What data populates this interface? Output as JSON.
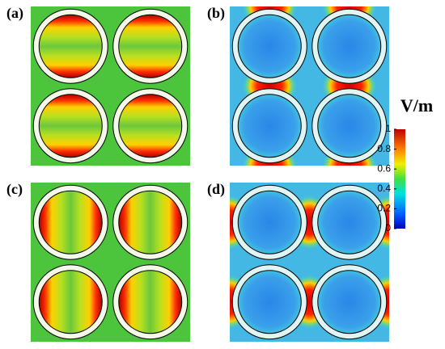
{
  "panels": [
    {
      "label": "(a)"
    },
    {
      "label": "(b)"
    },
    {
      "label": "(c)"
    },
    {
      "label": "(d)"
    }
  ],
  "colorbar": {
    "title": "V/m",
    "lim": [
      0,
      1
    ],
    "ticks": [
      0,
      0.2,
      0.4,
      0.6,
      0.8,
      1
    ]
  }
}
